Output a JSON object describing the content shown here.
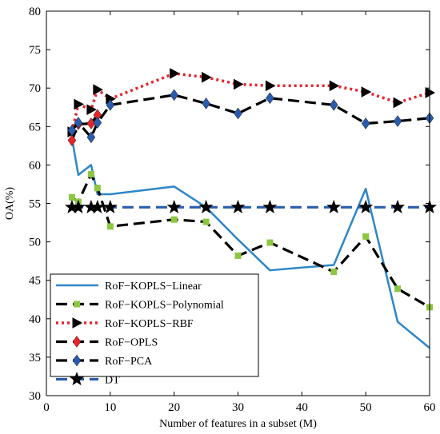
{
  "chart_data": {
    "type": "line",
    "title": "",
    "xlabel": "Number of features in a subset (M)",
    "ylabel": "OA(%)",
    "xlim": [
      0,
      60
    ],
    "ylim": [
      30,
      80
    ],
    "xticks": [
      0,
      10,
      20,
      30,
      40,
      50,
      60
    ],
    "yticks": [
      30,
      35,
      40,
      45,
      50,
      55,
      60,
      65,
      70,
      75,
      80
    ],
    "grid": false,
    "legend_position": "bottom-left",
    "series": [
      {
        "name": "RoF−KOPLS−Linear",
        "color": "#2e86c8",
        "dash": "solid",
        "marker": "none",
        "x": [
          4,
          5,
          7,
          8,
          10,
          20,
          25,
          30,
          35,
          45,
          50,
          55,
          60
        ],
        "y": [
          63.5,
          58.7,
          60.0,
          56.2,
          56.2,
          57.2,
          54.5,
          50.3,
          46.3,
          47.0,
          56.9,
          39.6,
          36.2
        ]
      },
      {
        "name": "RoF−KOPLS−Polynomial",
        "color": "#000000",
        "dash": "dashed",
        "marker": "square",
        "marker_color": "#8dc641",
        "x": [
          4,
          5,
          7,
          8,
          10,
          20,
          25,
          30,
          35,
          45,
          50,
          55,
          60
        ],
        "y": [
          55.8,
          55.2,
          58.8,
          57.0,
          52.0,
          52.9,
          52.6,
          48.2,
          49.9,
          46.1,
          50.7,
          43.9,
          41.5
        ]
      },
      {
        "name": "RoF−KOPLS−RBF",
        "color": "#e8242b",
        "dash": "dotted",
        "marker": "triangle-right",
        "marker_color": "#000000",
        "x": [
          4,
          5,
          7,
          8,
          10,
          20,
          25,
          30,
          35,
          45,
          50,
          55,
          60
        ],
        "y": [
          64.3,
          67.9,
          67.2,
          69.8,
          68.6,
          71.9,
          71.4,
          70.5,
          70.3,
          70.3,
          69.5,
          68.1,
          69.4
        ]
      },
      {
        "name": "RoF−OPLS",
        "color": "#000000",
        "dash": "dashed",
        "marker": "diamond",
        "marker_color": "#e8242b",
        "x": [
          4,
          5,
          7,
          8
        ],
        "y": [
          63.2,
          65.3,
          65.4,
          66.5
        ]
      },
      {
        "name": "RoF−PCA",
        "color": "#000000",
        "dash": "dashed",
        "marker": "diamond",
        "marker_color": "#2a5cad",
        "x": [
          4,
          5,
          7,
          8,
          10,
          20,
          25,
          30,
          35,
          45,
          50,
          55,
          60
        ],
        "y": [
          64.5,
          65.5,
          63.6,
          65.5,
          67.8,
          69.1,
          68.0,
          66.7,
          68.7,
          67.8,
          65.4,
          65.7,
          66.1
        ]
      },
      {
        "name": "DT",
        "color": "#2a5cad",
        "dash": "dashed",
        "marker": "star",
        "marker_color": "#000000",
        "x": [
          4,
          5,
          7,
          8,
          10,
          20,
          25,
          30,
          35,
          45,
          50,
          55,
          60
        ],
        "y": [
          54.5,
          54.5,
          54.5,
          54.5,
          54.5,
          54.5,
          54.5,
          54.5,
          54.5,
          54.5,
          54.5,
          54.5,
          54.5
        ]
      }
    ]
  }
}
